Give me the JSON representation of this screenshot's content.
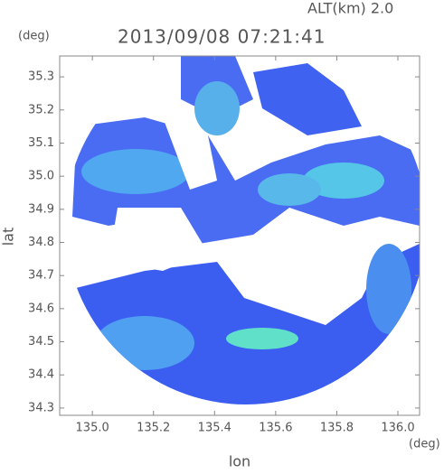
{
  "chart_data": {
    "type": "map",
    "title": "2013/09/08 07:21:41",
    "annotation": "ALT(km) 2.0",
    "xlabel": "lon",
    "ylabel": "lat",
    "xunit": "(deg)",
    "yunit": "(deg)",
    "xlim": [
      134.893,
      136.071
    ],
    "ylim": [
      34.278,
      35.363
    ],
    "xticks": [
      {
        "value": 135,
        "label": "135.0"
      },
      135.2,
      135.4,
      135.6,
      135.8,
      {
        "value": 136,
        "label": "136.0"
      }
    ],
    "yticks": [
      34.3,
      34.4,
      34.5,
      34.6,
      34.7,
      34.8,
      34.9,
      {
        "value": 35,
        "label": "35.0"
      },
      35.1,
      35.2,
      35.3
    ]
  }
}
